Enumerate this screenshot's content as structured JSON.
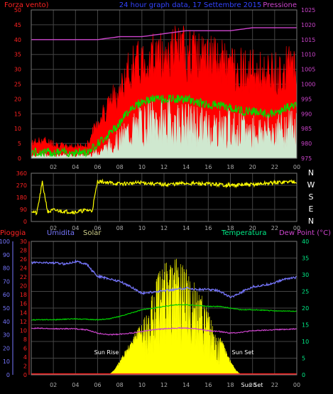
{
  "chart_data": [
    {
      "type": "line",
      "panel": "wind",
      "title": "24 hour graph data, 17 Settembre 2015",
      "left_axis_label": "Forza vento)",
      "right_axis_label": "Pressione",
      "left_ylim": [
        0,
        50
      ],
      "right_ylim": [
        975,
        1025
      ],
      "left_ticks": [
        "0",
        "5",
        "10",
        "15",
        "20",
        "25",
        "30",
        "35",
        "40",
        "45",
        "50"
      ],
      "right_ticks": [
        "975",
        "980",
        "985",
        "990",
        "995",
        "1000",
        "1005",
        "1010",
        "1015",
        "1020",
        "1025"
      ],
      "x_tick_labels": [
        "02",
        "04",
        "06",
        "08",
        "10",
        "12",
        "14",
        "16",
        "18",
        "20",
        "22",
        "00"
      ],
      "x_range_hours": [
        0,
        24
      ],
      "grid": true,
      "colors": {
        "gust": "#ff0000",
        "average": "#00dd00",
        "speed": "#cfe8cf",
        "pressure": "#cc44cc"
      },
      "series": [
        {
          "role": "gust",
          "x": [
            0,
            1,
            2,
            3,
            4,
            5,
            6,
            7,
            8,
            9,
            10,
            11,
            12,
            13,
            14,
            15,
            16,
            17,
            18,
            19,
            20,
            21,
            22,
            23,
            24
          ],
          "y": [
            5,
            6,
            5,
            4,
            4,
            4,
            12,
            18,
            22,
            30,
            32,
            34,
            34,
            36,
            35,
            34,
            33,
            32,
            31,
            30,
            29,
            28,
            28,
            30,
            30
          ]
        },
        {
          "role": "average",
          "x": [
            0,
            1,
            2,
            3,
            4,
            5,
            6,
            7,
            8,
            9,
            10,
            11,
            12,
            13,
            14,
            15,
            16,
            17,
            18,
            19,
            20,
            21,
            22,
            23,
            24
          ],
          "y": [
            2,
            2,
            2,
            2,
            2,
            2,
            5,
            8,
            12,
            17,
            19,
            20,
            20,
            20,
            20,
            19,
            18,
            18,
            17,
            16,
            16,
            15,
            15,
            17,
            18
          ]
        },
        {
          "role": "speed",
          "x": [
            0,
            1,
            2,
            3,
            4,
            5,
            6,
            7,
            8,
            9,
            10,
            11,
            12,
            13,
            14,
            15,
            16,
            17,
            18,
            19,
            20,
            21,
            22,
            23,
            24
          ],
          "y": [
            1,
            1,
            1,
            1,
            1,
            1,
            2,
            4,
            6,
            9,
            11,
            12,
            12,
            12,
            11,
            11,
            10,
            10,
            10,
            9,
            9,
            9,
            9,
            10,
            11
          ]
        },
        {
          "role": "pressure",
          "x": [
            0,
            2,
            4,
            6,
            8,
            10,
            12,
            14,
            16,
            18,
            20,
            22,
            24
          ],
          "y": [
            1015,
            1015,
            1015,
            1015,
            1016,
            1016,
            1017,
            1018,
            1018,
            1018,
            1019,
            1019,
            1019
          ]
        }
      ]
    },
    {
      "type": "line",
      "panel": "direction",
      "left_ylim": [
        0,
        360
      ],
      "left_ticks": [
        "0",
        "90",
        "180",
        "270",
        "360"
      ],
      "right_labels": [
        "N",
        "W",
        "S",
        "E",
        "N"
      ],
      "x_tick_labels": [
        "02",
        "04",
        "06",
        "08",
        "10",
        "12",
        "14",
        "16",
        "18",
        "20",
        "22",
        "00"
      ],
      "x_range_hours": [
        0,
        24
      ],
      "colors": {
        "direction": "#ffff00"
      },
      "series": [
        {
          "role": "direction",
          "x": [
            0,
            0.5,
            1,
            1.5,
            2,
            3,
            4,
            5,
            5.5,
            6,
            8,
            10,
            12,
            14,
            16,
            18,
            20,
            22,
            24
          ],
          "y": [
            80,
            60,
            290,
            70,
            85,
            75,
            70,
            85,
            80,
            300,
            280,
            290,
            275,
            285,
            280,
            270,
            275,
            290,
            300
          ]
        }
      ]
    },
    {
      "type": "line",
      "panel": "weather",
      "labels": {
        "rain": "Pioggia",
        "humidity": "Umidita",
        "solar": "Solar",
        "temperature": "Temperatura",
        "dewpoint": "Dew Point (°C)"
      },
      "humidity_ylim": [
        0,
        100
      ],
      "rain_ylim": [
        0,
        30
      ],
      "temp_ylim": [
        0,
        40
      ],
      "humidity_ticks": [
        "0",
        "10",
        "20",
        "30",
        "40",
        "50",
        "60",
        "70",
        "80",
        "90",
        "100"
      ],
      "rain_ticks": [
        "0",
        "2",
        "4",
        "6",
        "8",
        "10",
        "12",
        "14",
        "16",
        "18",
        "20",
        "22",
        "24",
        "26",
        "28",
        "30"
      ],
      "temp_ticks": [
        "0",
        "5",
        "10",
        "15",
        "20",
        "25",
        "30",
        "35",
        "40"
      ],
      "x_tick_labels": [
        "02",
        "04",
        "06",
        "08",
        "10",
        "12",
        "14",
        "16",
        "18",
        "20",
        "22",
        "00"
      ],
      "x_range_hours": [
        0,
        24
      ],
      "annotations": {
        "sunrise": "Sun Rise",
        "sunset": "Sun Set",
        "sunset2": "Sun Set"
      },
      "colors": {
        "humidity": "#7777ff",
        "temperature": "#00cc00",
        "dewpoint": "#cc44cc",
        "solar": "#ffff00",
        "rain": "#ff2222"
      },
      "series": [
        {
          "role": "humidity",
          "x": [
            0,
            1,
            2,
            3,
            4,
            4.5,
            5,
            5.5,
            6,
            7,
            8,
            9,
            10,
            11,
            12,
            13,
            14,
            15,
            16,
            17,
            18,
            19,
            20,
            21,
            22,
            23,
            24
          ],
          "y": [
            84,
            84,
            84,
            83,
            85,
            84,
            83,
            78,
            74,
            72,
            70,
            66,
            61,
            62,
            63,
            64,
            65,
            64,
            64,
            63,
            58,
            62,
            66,
            67,
            69,
            72,
            73
          ]
        },
        {
          "role": "temperature",
          "x": [
            0,
            2,
            4,
            6,
            7,
            8,
            9,
            10,
            11,
            12,
            13,
            14,
            15,
            16,
            17,
            18,
            19,
            20,
            22,
            24
          ],
          "y": [
            16.5,
            16.5,
            16.8,
            16.5,
            16.8,
            17.5,
            18.5,
            19.5,
            20,
            20.5,
            21,
            21,
            20.8,
            20.5,
            20.5,
            20,
            19.5,
            19.5,
            19.2,
            19
          ]
        },
        {
          "role": "dewpoint",
          "x": [
            0,
            2,
            4,
            5,
            6,
            7,
            8,
            9,
            10,
            11,
            12,
            13,
            14,
            15,
            16,
            17,
            18,
            19,
            20,
            22,
            24
          ],
          "y": [
            14,
            13.8,
            13.8,
            13.5,
            12.5,
            12,
            12.2,
            12.5,
            13,
            13.5,
            13.8,
            14,
            14,
            13.8,
            13.2,
            13,
            12.5,
            12.8,
            13.2,
            13.5,
            13.8
          ]
        },
        {
          "role": "solar",
          "x": [
            7,
            7.5,
            8,
            8.5,
            9,
            9.5,
            10,
            10.5,
            11,
            11.5,
            12,
            12.5,
            13,
            13.5,
            14,
            14.5,
            15,
            15.5,
            16,
            16.5,
            17,
            17.5,
            18,
            18.5,
            19
          ],
          "y": [
            0,
            1,
            3,
            5,
            7,
            9,
            11,
            13,
            18,
            21,
            23,
            23,
            24,
            23,
            22,
            20,
            18,
            16,
            13,
            11,
            8,
            6,
            3,
            1,
            0
          ]
        },
        {
          "role": "rain",
          "x": [
            0,
            24
          ],
          "y": [
            0,
            0
          ]
        }
      ]
    }
  ]
}
